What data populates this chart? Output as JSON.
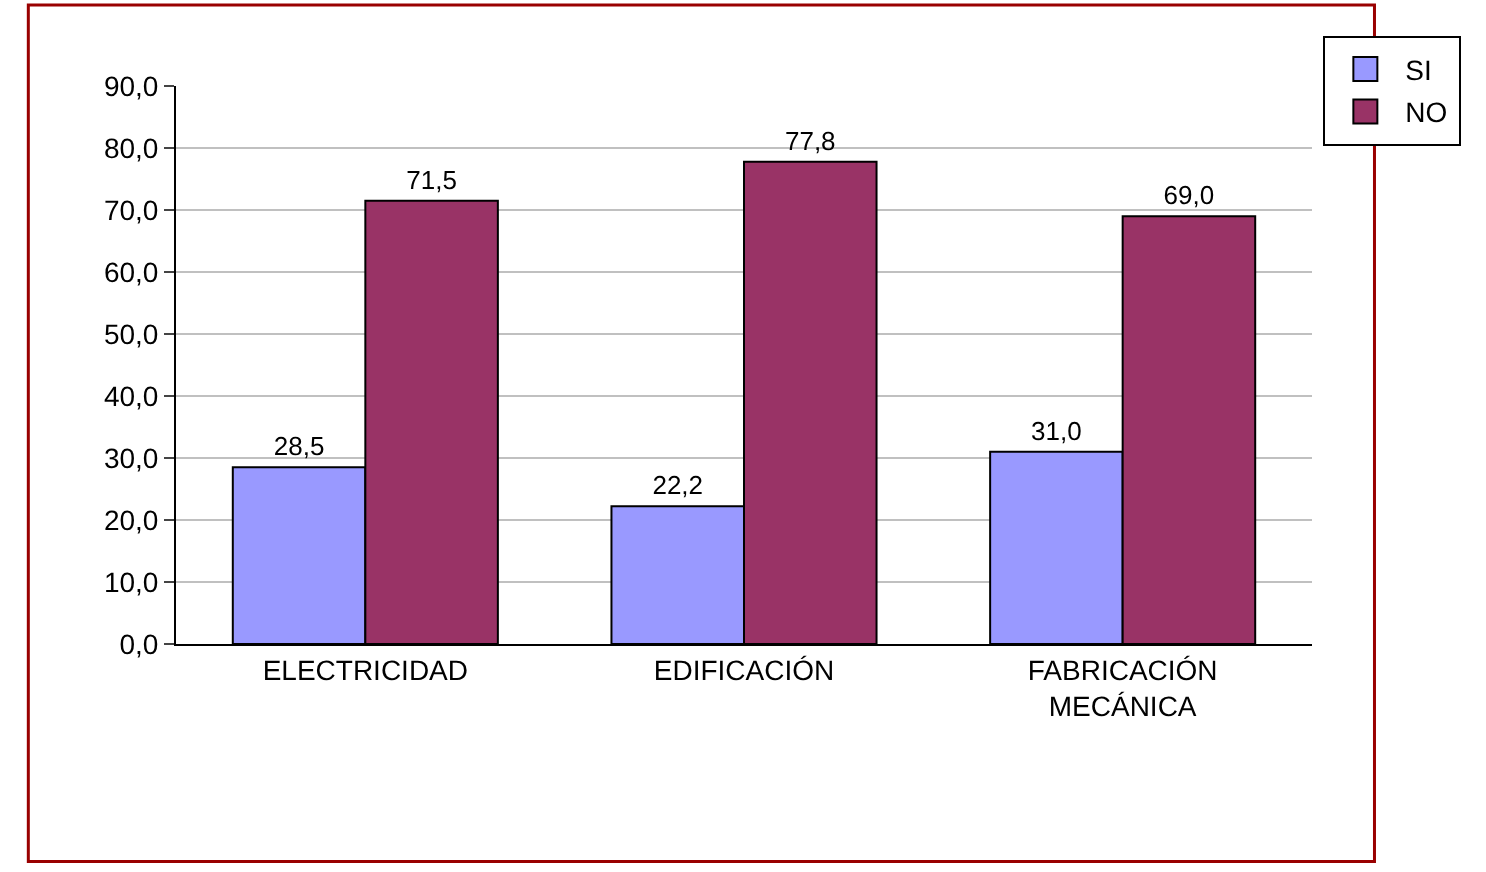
{
  "chart_data": {
    "type": "bar",
    "categories": [
      "ELECTRICIDAD",
      "EDIFICACIÓN",
      "FABRICACIÓN MECÁNICA"
    ],
    "series": [
      {
        "name": "SI",
        "color": "#9999ff",
        "values": [
          28.5,
          22.2,
          31.0
        ],
        "value_labels": [
          "28,5",
          "22,2",
          "31,0"
        ]
      },
      {
        "name": "NO",
        "color": "#993366",
        "values": [
          71.5,
          77.8,
          69.0
        ],
        "value_labels": [
          "71,5",
          "77,8",
          "69,0"
        ]
      }
    ],
    "ylim": [
      0,
      90
    ],
    "yticks": [
      {
        "value": 0,
        "label": "0,0"
      },
      {
        "value": 10,
        "label": "10,0"
      },
      {
        "value": 20,
        "label": "20,0"
      },
      {
        "value": 30,
        "label": "30,0"
      },
      {
        "value": 40,
        "label": "40,0"
      },
      {
        "value": 50,
        "label": "50,0"
      },
      {
        "value": 60,
        "label": "60,0"
      },
      {
        "value": 70,
        "label": "70,0"
      },
      {
        "value": 80,
        "label": "80,0"
      },
      {
        "value": 90,
        "label": "90,0"
      }
    ],
    "grid": "y",
    "legend": "top right"
  }
}
